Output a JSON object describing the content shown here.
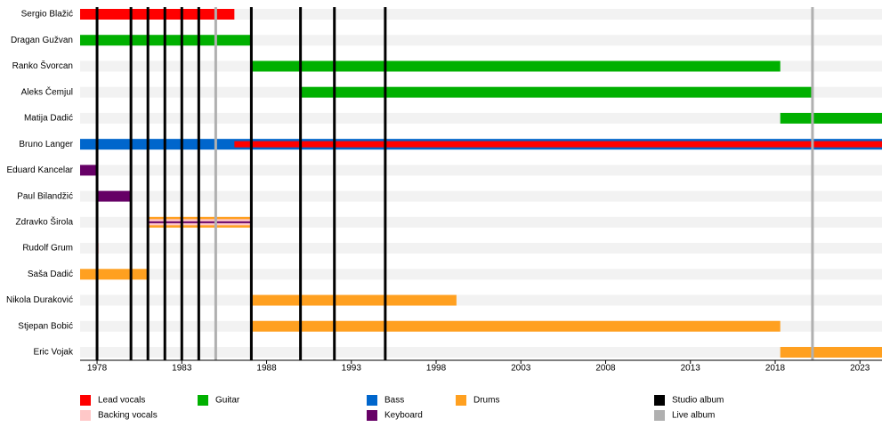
{
  "chart_data": {
    "type": "timeline",
    "xlim": [
      1977,
      2024.3
    ],
    "xticks": [
      1978,
      1983,
      1988,
      1993,
      1998,
      2003,
      2008,
      2013,
      2018,
      2023
    ],
    "roles": [
      {
        "name": "Lead vocals",
        "color": "#ff0000"
      },
      {
        "name": "Backing vocals",
        "color": "#ffc8c8"
      },
      {
        "name": "Guitar",
        "color": "#00b000"
      },
      {
        "name": "Bass",
        "color": "#0066cc"
      },
      {
        "name": "Keyboard",
        "color": "#660066"
      },
      {
        "name": "Drums",
        "color": "#ffa020"
      }
    ],
    "albums": [
      {
        "name": "Studio album",
        "color": "#000000",
        "years": [
          1978,
          1980,
          1981,
          1982,
          1983,
          1984,
          1987.1,
          1990,
          1992,
          1995
        ]
      },
      {
        "name": "Live album",
        "color": "#b0b0b0",
        "years": [
          1985,
          2020.2
        ]
      }
    ],
    "members": [
      {
        "name": "Sergio Blažić",
        "periods": [
          {
            "role": 0,
            "start": 1977,
            "end": 1986.1
          }
        ]
      },
      {
        "name": "Dragan Gužvan",
        "periods": [
          {
            "role": 2,
            "start": 1977,
            "end": 1987.1
          }
        ]
      },
      {
        "name": "Ranko Švorcan",
        "periods": [
          {
            "role": 2,
            "start": 1987.1,
            "end": 2018.3
          }
        ]
      },
      {
        "name": "Aleks Čemjul",
        "periods": [
          {
            "role": 2,
            "start": 1990,
            "end": 2020.2
          }
        ]
      },
      {
        "name": "Matija Dadić",
        "periods": [
          {
            "role": 2,
            "start": 2018.3,
            "end": 2024.3
          }
        ]
      },
      {
        "name": "Bruno Langer",
        "periods": [
          {
            "role": 3,
            "start": 1977,
            "end": 2024.3
          },
          {
            "role": 0,
            "start": 1986.1,
            "end": 2024.3
          }
        ]
      },
      {
        "name": "Eduard Kancelar",
        "periods": [
          {
            "role": 4,
            "start": 1977,
            "end": 1978
          }
        ]
      },
      {
        "name": "Paul Bilandžić",
        "periods": [
          {
            "role": 4,
            "start": 1978,
            "end": 1980
          }
        ]
      },
      {
        "name": "Zdravko Širola",
        "periods": [
          {
            "role": 5,
            "start": 1981,
            "end": 1987.1
          },
          {
            "role": 1,
            "start": 1981,
            "end": 1987.1
          },
          {
            "role": 4,
            "start": 1981,
            "end": 1987.1
          }
        ]
      },
      {
        "name": "Rudolf Grum",
        "periods": [
          {
            "role": 1,
            "start": 1978,
            "end": 1978.1
          }
        ]
      },
      {
        "name": "Saša Dadić",
        "periods": [
          {
            "role": 5,
            "start": 1977,
            "end": 1981
          }
        ]
      },
      {
        "name": "Nikola Duraković",
        "periods": [
          {
            "role": 5,
            "start": 1987.1,
            "end": 1999.2
          }
        ]
      },
      {
        "name": "Stjepan Bobić",
        "periods": [
          {
            "role": 5,
            "start": 1987.1,
            "end": 2018.3
          }
        ]
      },
      {
        "name": "Eric Vojak",
        "periods": [
          {
            "role": 5,
            "start": 2018.3,
            "end": 2024.3
          }
        ]
      }
    ]
  }
}
